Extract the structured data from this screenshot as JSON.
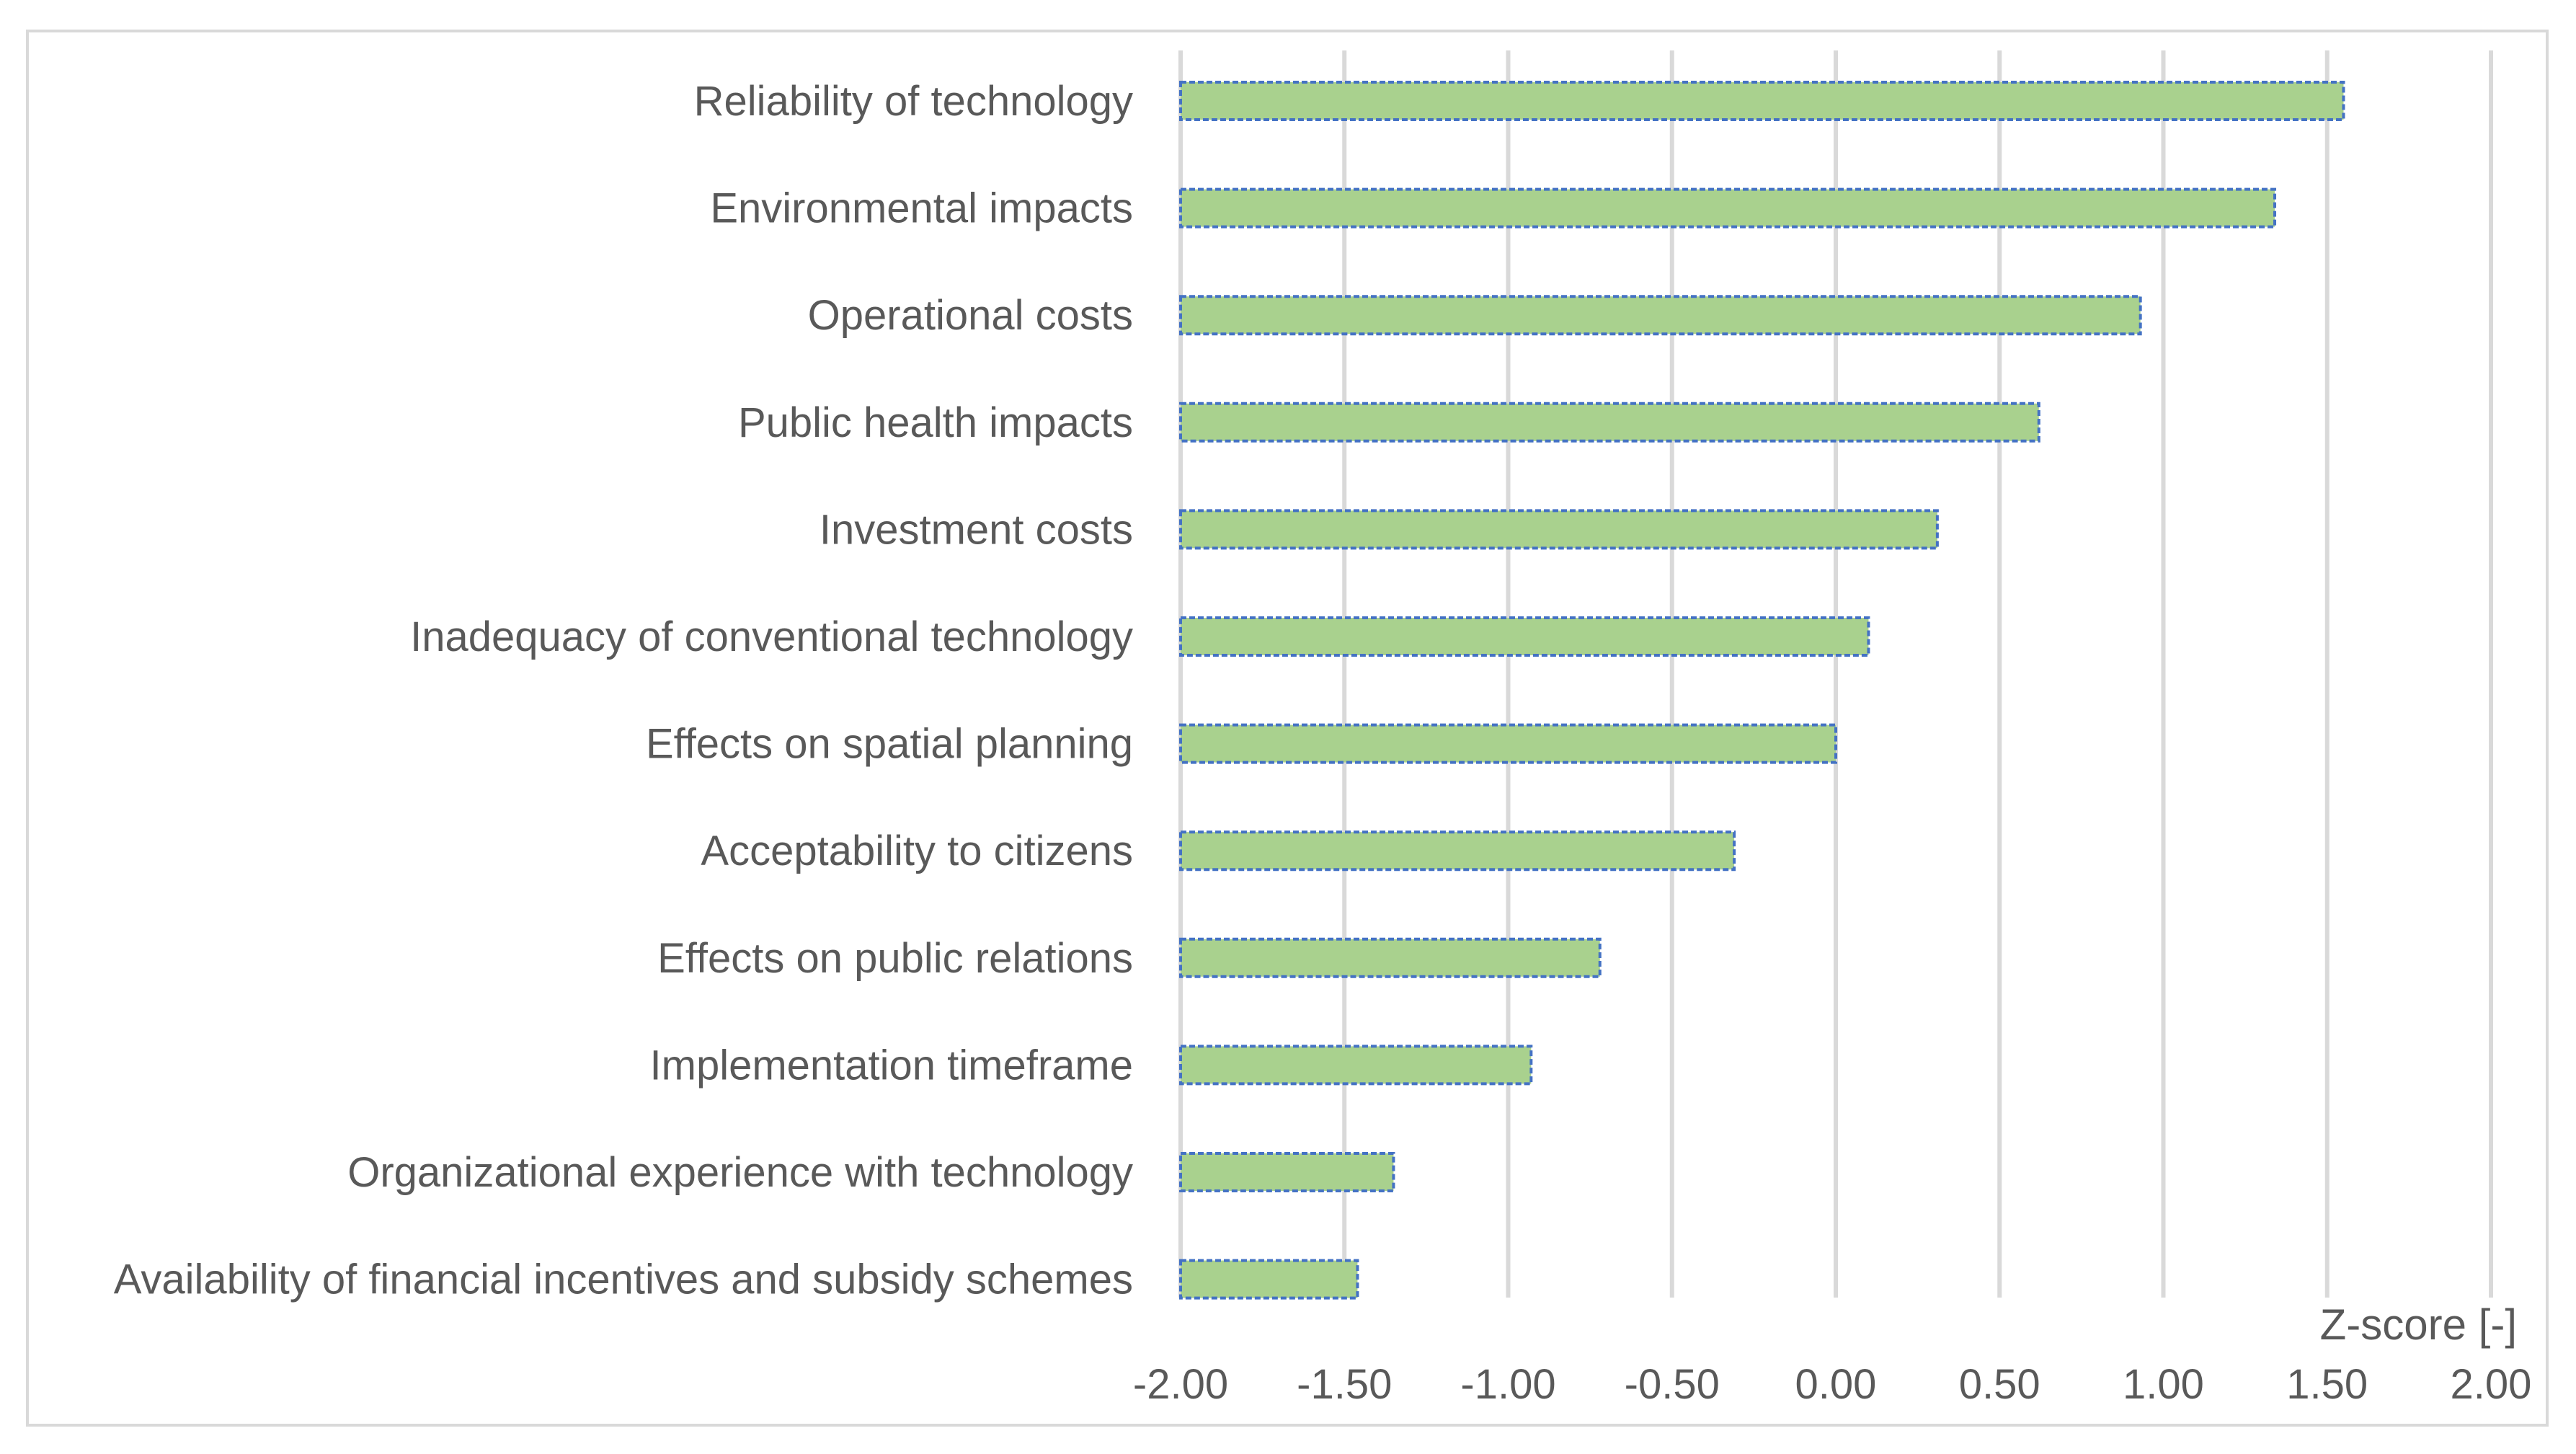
{
  "chart_data": {
    "type": "bar",
    "orientation": "horizontal",
    "title": "",
    "xlabel": "Z-score [-]",
    "ylabel": "",
    "xlim": [
      -2.0,
      2.0
    ],
    "x_ticks": [
      "-2.00",
      "-1.50",
      "-1.00",
      "-0.50",
      "0.00",
      "0.50",
      "1.00",
      "1.50",
      "2.00"
    ],
    "x_tick_values": [
      -2.0,
      -1.5,
      -1.0,
      -0.5,
      0.0,
      0.5,
      1.0,
      1.5,
      2.0
    ],
    "grid": "vertical",
    "legend": "none",
    "bar_fill": "#a9d18e",
    "bar_border": "#4472c4",
    "gridline_color": "#d9d9d9",
    "text_color": "#595959",
    "categories": [
      "Reliability of technology",
      "Environmental impacts",
      "Operational costs",
      "Public health impacts ",
      "Investment costs",
      "Inadequacy of conventional technology",
      "Effects on spatial planning",
      "Acceptability to citizens",
      "Effects on public relations",
      "Implementation timeframe",
      "Organizational experience with technology",
      "Availability of financial incentives and subsidy schemes "
    ],
    "values": [
      1.55,
      1.34,
      0.93,
      0.62,
      0.31,
      0.1,
      0.0,
      -0.31,
      -0.72,
      -0.93,
      -1.35,
      -1.46
    ],
    "bar_base": -2.0
  }
}
